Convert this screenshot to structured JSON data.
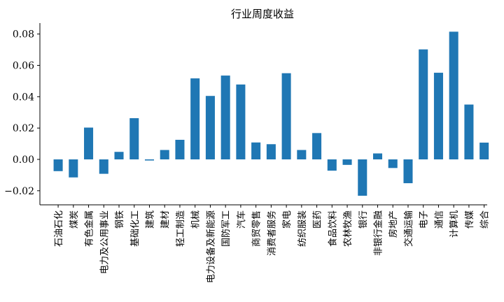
{
  "chart_data": {
    "type": "bar",
    "title": "行业周度收益",
    "xlabel": "",
    "ylabel": "",
    "ylim": [
      -0.029,
      0.087
    ],
    "yticks": [
      -0.02,
      0.0,
      0.02,
      0.04,
      0.06,
      0.08
    ],
    "ytick_labels": [
      "−0.02",
      "0.00",
      "0.02",
      "0.04",
      "0.06",
      "0.08"
    ],
    "grid": false,
    "color": "#1f77b4",
    "categories": [
      "石油石化",
      "煤炭",
      "有色金属",
      "电力及公用事业",
      "钢铁",
      "基础化工",
      "建筑",
      "建材",
      "轻工制造",
      "机械",
      "电力设备及新能源",
      "国防军工",
      "汽车",
      "商贸零售",
      "消费者服务",
      "家电",
      "纺织服装",
      "医药",
      "食品饮料",
      "农林牧渔",
      "银行",
      "非银行金融",
      "房地产",
      "交通运输",
      "电子",
      "通信",
      "计算机",
      "传媒",
      "综合"
    ],
    "values": [
      -0.0075,
      -0.0115,
      0.0203,
      -0.0092,
      0.0048,
      0.0263,
      -0.0007,
      0.006,
      0.0125,
      0.0517,
      0.0405,
      0.0535,
      0.0478,
      0.0108,
      0.0097,
      0.055,
      0.006,
      0.0168,
      -0.0072,
      -0.0035,
      -0.0232,
      0.0038,
      -0.0055,
      -0.0152,
      0.0702,
      0.0553,
      0.0815,
      0.035,
      0.0107
    ]
  }
}
